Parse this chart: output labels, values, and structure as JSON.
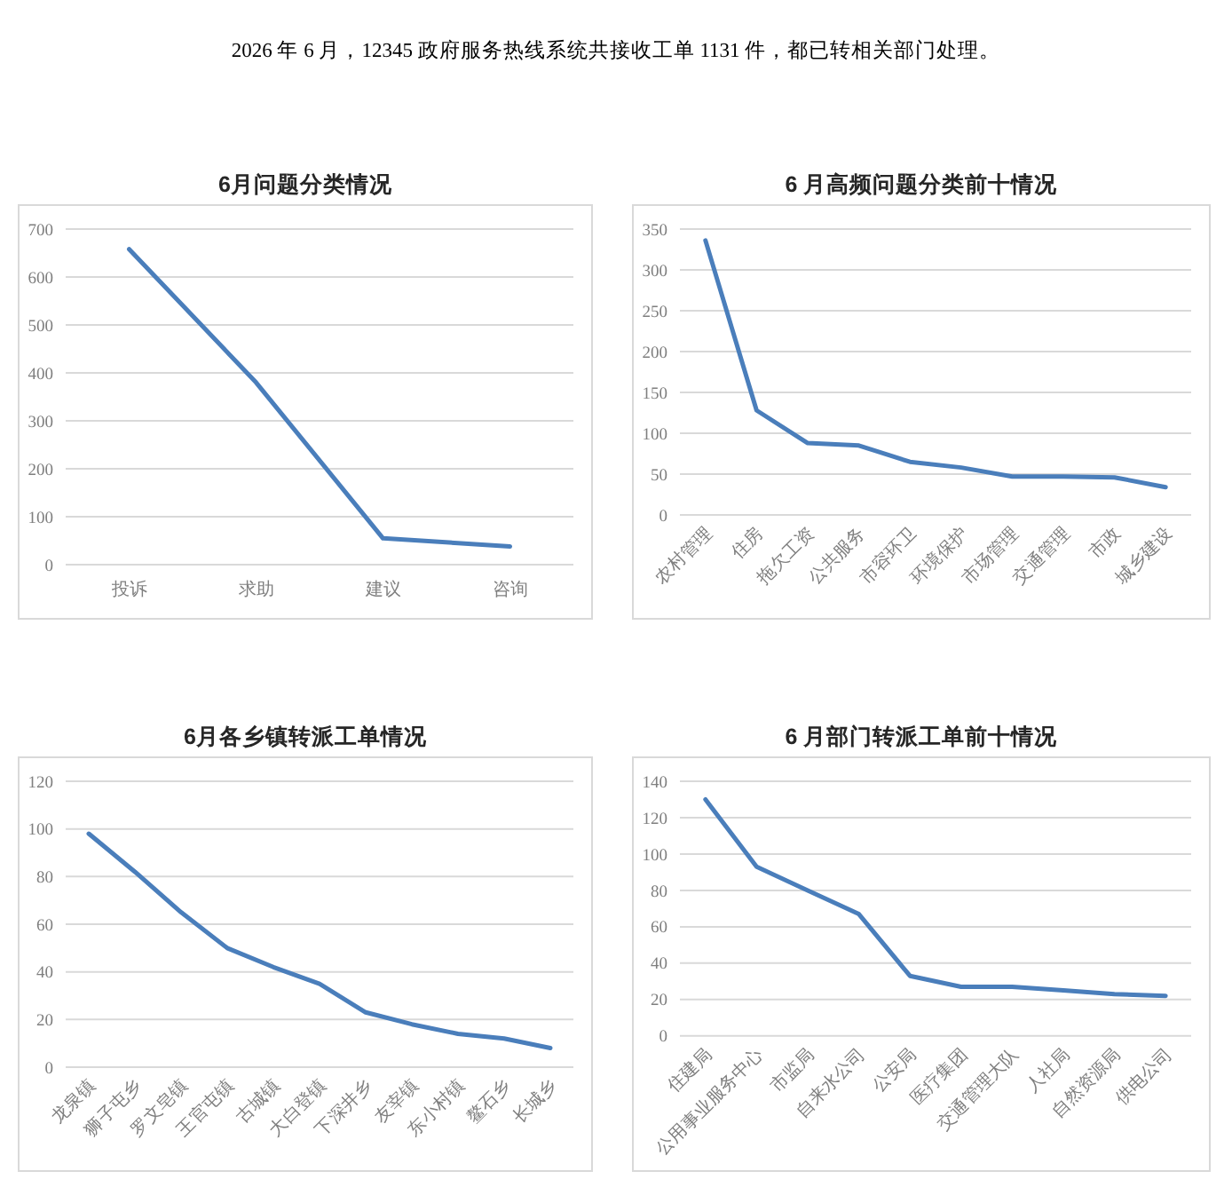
{
  "chart_data": [
    {
      "type": "other",
      "title": "2026 年 6 月，12345 政府服务热线系统共接收工单 1131 件，都已转相关部门处理。"
    },
    {
      "type": "line",
      "title": "6月问题分类情况",
      "categories": [
        "投诉",
        "求助",
        "建议",
        "咨询"
      ],
      "values": [
        658,
        380,
        55,
        38
      ],
      "color": "#4a7ebb",
      "ylim": [
        0,
        700
      ],
      "yticks": [
        0,
        100,
        200,
        300,
        400,
        500,
        600,
        700
      ],
      "grid": "y",
      "line_style": "solid"
    },
    {
      "type": "line",
      "title": "6 月高频问题分类前十情况",
      "categories": [
        "农村管理",
        "住房",
        "拖欠工资",
        "公共服务",
        "市容环卫",
        "环境保护",
        "市场管理",
        "交通管理",
        "市政",
        "城乡建设"
      ],
      "values": [
        336,
        128,
        88,
        85,
        65,
        58,
        47,
        47,
        46,
        34
      ],
      "color": "#4a7ebb",
      "ylim": [
        0,
        350
      ],
      "yticks": [
        0,
        50,
        100,
        150,
        200,
        250,
        300,
        350
      ],
      "grid": "y",
      "line_style": "solid"
    },
    {
      "type": "line",
      "title": "6月各乡镇转派工单情况",
      "categories": [
        "龙泉镇",
        "狮子屯乡",
        "罗文皂镇",
        "王官屯镇",
        "古城镇",
        "大白登镇",
        "下深井乡",
        "友宰镇",
        "东小村镇",
        "鳌石乡",
        "长城乡"
      ],
      "values": [
        98,
        82,
        65,
        50,
        42,
        35,
        23,
        18,
        14,
        12,
        8
      ],
      "color": "#4a7ebb",
      "ylim": [
        0,
        120
      ],
      "yticks": [
        0,
        20,
        40,
        60,
        80,
        100,
        120
      ],
      "grid": "y",
      "line_style": "solid"
    },
    {
      "type": "line",
      "title": "6 月部门转派工单前十情况",
      "categories": [
        "住建局",
        "公用事业服务中心",
        "市监局",
        "自来水公司",
        "公安局",
        "医疗集团",
        "交通管理大队",
        "人社局",
        "自然资源局",
        "供电公司"
      ],
      "values": [
        130,
        93,
        80,
        67,
        33,
        27,
        27,
        25,
        23,
        22
      ],
      "color": "#4a7ebb",
      "ylim": [
        0,
        140
      ],
      "yticks": [
        0,
        20,
        40,
        60,
        80,
        100,
        120,
        140
      ],
      "grid": "y",
      "line_style": "solid"
    }
  ]
}
